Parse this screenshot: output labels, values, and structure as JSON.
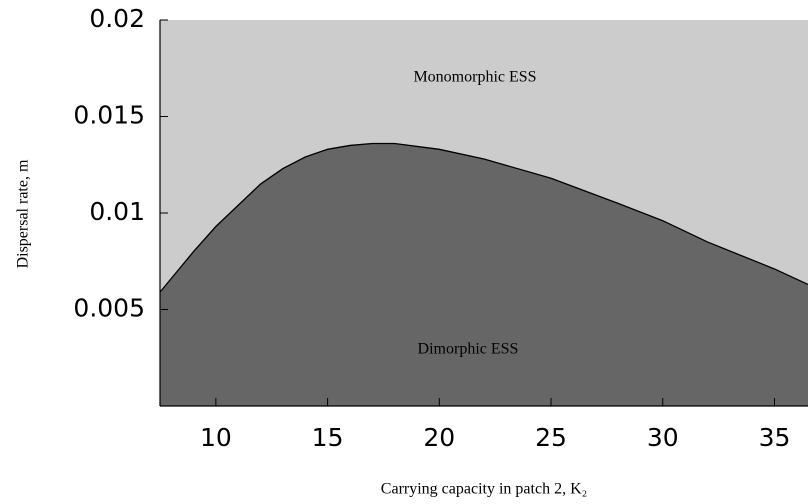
{
  "chart_data": {
    "type": "area",
    "xlabel": "Carrying capacity in patch 2, K₂",
    "ylabel": "Dispersal rate, m",
    "annotations": [
      "Monomorphic ESS",
      "Dimorphic ESS"
    ],
    "x": [
      7.5,
      9,
      10,
      11,
      12,
      13,
      14,
      15,
      16,
      17,
      18,
      20,
      22,
      25,
      28,
      30,
      32,
      35,
      36.5
    ],
    "values": [
      0.0059,
      0.008,
      0.0093,
      0.0104,
      0.0115,
      0.0123,
      0.0129,
      0.0133,
      0.0135,
      0.0136,
      0.0136,
      0.0133,
      0.0128,
      0.0118,
      0.0105,
      0.0096,
      0.0085,
      0.0071,
      0.0063
    ],
    "color": "#666666",
    "background_color": "#cccccc",
    "xlim": [
      7.5,
      36.5
    ],
    "xticks": [
      10,
      15,
      20,
      25,
      30,
      35
    ],
    "ylim": [
      0,
      0.02
    ],
    "yticks": [
      0.005,
      0.01,
      0.015,
      0.02
    ]
  }
}
